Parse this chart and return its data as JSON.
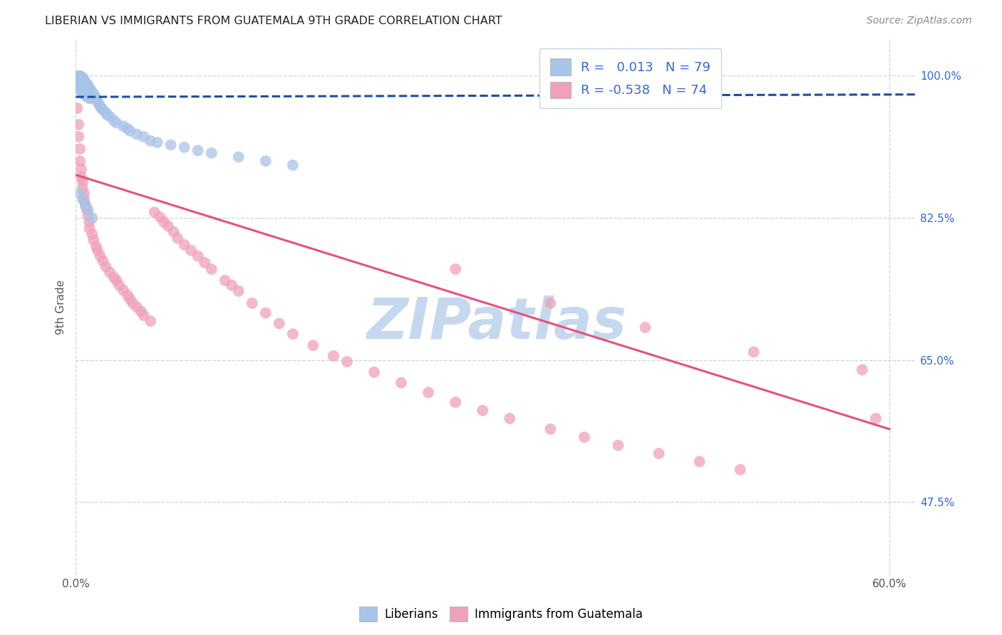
{
  "title": "LIBERIAN VS IMMIGRANTS FROM GUATEMALA 9TH GRADE CORRELATION CHART",
  "source": "Source: ZipAtlas.com",
  "ylabel_label": "9th Grade",
  "ylabel_ticks_labels": [
    "47.5%",
    "65.0%",
    "82.5%",
    "100.0%"
  ],
  "ylabel_ticks_vals": [
    0.475,
    0.65,
    0.825,
    1.0
  ],
  "xlabel_ticks_labels": [
    "0.0%",
    "60.0%"
  ],
  "xlabel_ticks_vals": [
    0.0,
    0.6
  ],
  "xlim": [
    0.0,
    0.62
  ],
  "ylim": [
    0.385,
    1.045
  ],
  "legend_label1": "Liberians",
  "legend_label2": "Immigrants from Guatemala",
  "r1": "0.013",
  "n1": "79",
  "r2": "-0.538",
  "n2": "74",
  "color_blue": "#a8c4e8",
  "color_pink": "#f0a0b8",
  "line_blue_color": "#1a4fa0",
  "line_pink_color": "#e8507a",
  "watermark": "ZIPatlas",
  "watermark_color": "#c5d8ef",
  "background": "#ffffff",
  "grid_color": "#c8d4e4",
  "blue_line_x": [
    0.0,
    0.62
  ],
  "blue_line_y": [
    0.974,
    0.977
  ],
  "pink_line_x": [
    0.0,
    0.6
  ],
  "pink_line_y": [
    0.878,
    0.565
  ],
  "liberian_x": [
    0.001,
    0.001,
    0.001,
    0.002,
    0.002,
    0.002,
    0.002,
    0.002,
    0.002,
    0.003,
    0.003,
    0.003,
    0.003,
    0.003,
    0.003,
    0.003,
    0.004,
    0.004,
    0.004,
    0.004,
    0.004,
    0.004,
    0.005,
    0.005,
    0.005,
    0.005,
    0.005,
    0.006,
    0.006,
    0.006,
    0.006,
    0.007,
    0.007,
    0.007,
    0.007,
    0.008,
    0.008,
    0.008,
    0.009,
    0.009,
    0.01,
    0.01,
    0.01,
    0.011,
    0.011,
    0.012,
    0.012,
    0.013,
    0.014,
    0.015,
    0.016,
    0.017,
    0.018,
    0.019,
    0.02,
    0.022,
    0.023,
    0.025,
    0.028,
    0.03,
    0.035,
    0.038,
    0.04,
    0.045,
    0.05,
    0.055,
    0.06,
    0.07,
    0.08,
    0.09,
    0.1,
    0.12,
    0.14,
    0.16,
    0.003,
    0.005,
    0.007,
    0.009,
    0.012
  ],
  "liberian_y": [
    0.998,
    0.995,
    0.992,
    1.0,
    0.998,
    0.995,
    0.99,
    0.988,
    0.985,
    1.0,
    0.998,
    0.996,
    0.993,
    0.99,
    0.985,
    0.982,
    0.998,
    0.995,
    0.992,
    0.988,
    0.985,
    0.98,
    0.998,
    0.995,
    0.99,
    0.985,
    0.98,
    0.995,
    0.99,
    0.985,
    0.978,
    0.992,
    0.988,
    0.983,
    0.975,
    0.99,
    0.985,
    0.978,
    0.988,
    0.98,
    0.985,
    0.978,
    0.972,
    0.982,
    0.975,
    0.98,
    0.972,
    0.978,
    0.975,
    0.972,
    0.968,
    0.965,
    0.962,
    0.96,
    0.958,
    0.955,
    0.952,
    0.95,
    0.945,
    0.942,
    0.938,
    0.935,
    0.932,
    0.928,
    0.925,
    0.92,
    0.918,
    0.915,
    0.912,
    0.908,
    0.905,
    0.9,
    0.895,
    0.89,
    0.855,
    0.848,
    0.84,
    0.835,
    0.825
  ],
  "guatemala_x": [
    0.001,
    0.002,
    0.002,
    0.003,
    0.003,
    0.004,
    0.004,
    0.005,
    0.005,
    0.006,
    0.006,
    0.007,
    0.008,
    0.009,
    0.01,
    0.01,
    0.012,
    0.013,
    0.015,
    0.016,
    0.018,
    0.02,
    0.022,
    0.025,
    0.028,
    0.03,
    0.032,
    0.035,
    0.038,
    0.04,
    0.042,
    0.045,
    0.048,
    0.05,
    0.055,
    0.058,
    0.062,
    0.065,
    0.068,
    0.072,
    0.075,
    0.08,
    0.085,
    0.09,
    0.095,
    0.1,
    0.11,
    0.115,
    0.12,
    0.13,
    0.14,
    0.15,
    0.16,
    0.175,
    0.19,
    0.2,
    0.22,
    0.24,
    0.26,
    0.28,
    0.3,
    0.32,
    0.35,
    0.375,
    0.4,
    0.43,
    0.46,
    0.49,
    0.28,
    0.35,
    0.42,
    0.5,
    0.58,
    0.59
  ],
  "guatemala_y": [
    0.96,
    0.94,
    0.925,
    0.91,
    0.895,
    0.885,
    0.875,
    0.87,
    0.862,
    0.855,
    0.848,
    0.842,
    0.835,
    0.828,
    0.82,
    0.812,
    0.805,
    0.798,
    0.79,
    0.785,
    0.778,
    0.772,
    0.765,
    0.758,
    0.752,
    0.748,
    0.742,
    0.736,
    0.73,
    0.725,
    0.72,
    0.715,
    0.71,
    0.705,
    0.698,
    0.832,
    0.826,
    0.82,
    0.815,
    0.808,
    0.8,
    0.792,
    0.785,
    0.778,
    0.77,
    0.762,
    0.748,
    0.742,
    0.735,
    0.72,
    0.708,
    0.695,
    0.682,
    0.668,
    0.655,
    0.648,
    0.635,
    0.622,
    0.61,
    0.598,
    0.588,
    0.578,
    0.565,
    0.555,
    0.545,
    0.535,
    0.525,
    0.515,
    0.762,
    0.72,
    0.69,
    0.66,
    0.638,
    0.578
  ]
}
